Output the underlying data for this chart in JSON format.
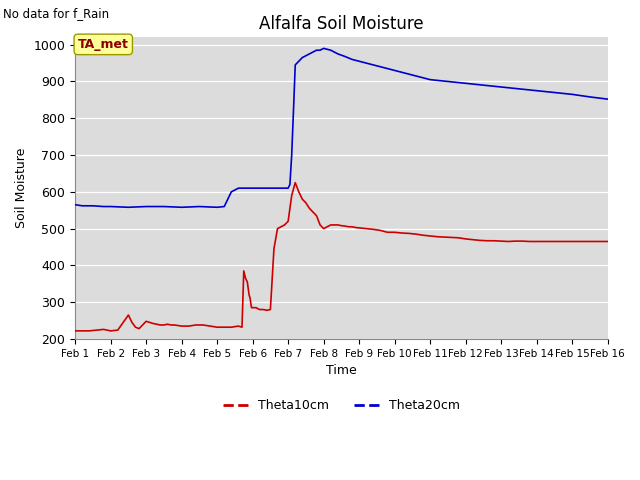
{
  "title": "Alfalfa Soil Moisture",
  "top_left_note": "No data for f_Rain",
  "ylabel": "Soil Moisture",
  "xlabel": "Time",
  "ylim": [
    200,
    1020
  ],
  "yticks": [
    200,
    300,
    400,
    500,
    600,
    700,
    800,
    900,
    1000
  ],
  "bg_color": "#dcdcdc",
  "fig_color": "#ffffff",
  "annotation_box": "TA_met",
  "annotation_box_facecolor": "#ffff99",
  "annotation_box_edgecolor": "#999900",
  "annotation_text_color": "#8b0000",
  "legend_labels": [
    "Theta10cm",
    "Theta20cm"
  ],
  "line_color_red": "#cc0000",
  "line_color_blue": "#0000cc",
  "xticklabels": [
    "Feb 1",
    "Feb 2",
    "Feb 3",
    "Feb 4",
    "Feb 5",
    "Feb 6",
    "Feb 7",
    "Feb 8",
    "Feb 9",
    "Feb 10",
    "Feb 11",
    "Feb 12",
    "Feb 13",
    "Feb 14",
    "Feb 15",
    "Feb 16"
  ],
  "xlim": [
    1,
    16
  ],
  "red_x": [
    1.0,
    1.1,
    1.2,
    1.4,
    1.6,
    1.8,
    2.0,
    2.2,
    2.5,
    2.6,
    2.7,
    2.8,
    3.0,
    3.2,
    3.3,
    3.4,
    3.5,
    3.6,
    3.7,
    3.8,
    4.0,
    4.2,
    4.4,
    4.6,
    4.8,
    5.0,
    5.2,
    5.4,
    5.6,
    5.7,
    5.75,
    5.8,
    5.85,
    5.9,
    5.93,
    5.95,
    5.97,
    6.0,
    6.05,
    6.1,
    6.15,
    6.2,
    6.3,
    6.4,
    6.5,
    6.6,
    6.7,
    6.8,
    6.9,
    7.0,
    7.1,
    7.2,
    7.3,
    7.4,
    7.5,
    7.6,
    7.7,
    7.8,
    7.9,
    8.0,
    8.1,
    8.2,
    8.3,
    8.4,
    8.5,
    8.6,
    8.7,
    8.8,
    8.9,
    9.0,
    9.2,
    9.4,
    9.6,
    9.8,
    10.0,
    10.2,
    10.4,
    10.6,
    10.8,
    11.0,
    11.2,
    11.4,
    11.6,
    11.8,
    12.0,
    12.2,
    12.4,
    12.6,
    12.8,
    13.0,
    13.2,
    13.4,
    13.6,
    13.8,
    14.0,
    14.2,
    14.4,
    14.6,
    14.8,
    15.0,
    15.2,
    15.4,
    15.6,
    15.8,
    16.0
  ],
  "red_y": [
    222,
    222,
    222,
    222,
    224,
    226,
    222,
    224,
    265,
    245,
    232,
    228,
    248,
    242,
    240,
    238,
    238,
    240,
    238,
    238,
    235,
    235,
    238,
    238,
    235,
    232,
    232,
    232,
    235,
    232,
    385,
    365,
    355,
    320,
    310,
    295,
    285,
    285,
    285,
    285,
    282,
    280,
    280,
    278,
    280,
    445,
    500,
    505,
    510,
    520,
    590,
    625,
    600,
    580,
    570,
    555,
    545,
    535,
    510,
    500,
    505,
    510,
    510,
    510,
    508,
    507,
    505,
    505,
    503,
    502,
    500,
    498,
    495,
    490,
    490,
    488,
    487,
    485,
    482,
    480,
    478,
    477,
    476,
    475,
    472,
    470,
    468,
    467,
    467,
    466,
    465,
    466,
    466,
    465,
    465,
    465,
    465,
    465,
    465,
    465,
    465,
    465,
    465,
    465,
    465
  ],
  "blue_x": [
    1.0,
    1.2,
    1.5,
    1.8,
    2.0,
    2.5,
    3.0,
    3.5,
    4.0,
    4.5,
    5.0,
    5.2,
    5.4,
    5.5,
    5.6,
    5.7,
    5.8,
    5.9,
    6.0,
    6.1,
    6.2,
    6.3,
    6.4,
    6.5,
    6.6,
    6.7,
    6.8,
    6.9,
    7.0,
    7.05,
    7.1,
    7.15,
    7.2,
    7.3,
    7.4,
    7.5,
    7.6,
    7.7,
    7.8,
    7.9,
    8.0,
    8.2,
    8.4,
    8.6,
    8.8,
    9.0,
    9.2,
    9.4,
    9.6,
    9.8,
    10.0,
    10.2,
    10.4,
    10.6,
    10.8,
    11.0,
    11.5,
    12.0,
    12.5,
    13.0,
    13.5,
    14.0,
    14.5,
    15.0,
    15.5,
    16.0
  ],
  "blue_y": [
    565,
    562,
    562,
    560,
    560,
    558,
    560,
    560,
    558,
    560,
    558,
    560,
    600,
    605,
    610,
    610,
    610,
    610,
    610,
    610,
    610,
    610,
    610,
    610,
    610,
    610,
    610,
    610,
    610,
    620,
    700,
    820,
    945,
    955,
    965,
    970,
    975,
    980,
    985,
    985,
    990,
    985,
    975,
    968,
    960,
    955,
    950,
    945,
    940,
    935,
    930,
    925,
    920,
    915,
    910,
    905,
    900,
    895,
    890,
    885,
    880,
    875,
    870,
    865,
    858,
    852
  ]
}
